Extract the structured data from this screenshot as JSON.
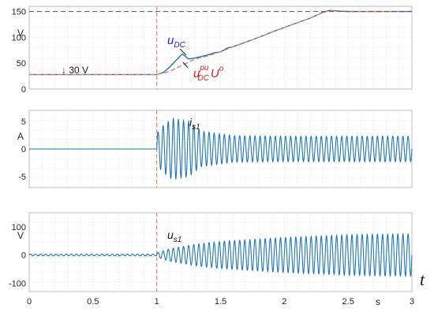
{
  "chart_data": [
    {
      "type": "line",
      "ylabel": "V",
      "ylim": [
        0,
        160
      ],
      "yticks": [
        "0",
        "50",
        "100",
        "150"
      ],
      "xlim": [
        0,
        3
      ],
      "xticks": [
        "0",
        "0.5",
        "1",
        "1.5",
        "2",
        "2.5",
        "3"
      ],
      "grid": true,
      "series": [
        {
          "name": "u_DC",
          "color": "#1f77b4",
          "x": [
            0,
            1.0,
            1.05,
            1.1,
            1.15,
            1.2,
            1.25,
            1.3,
            1.35,
            1.4,
            1.45,
            1.5,
            1.55,
            1.6,
            1.7,
            1.8,
            1.9,
            2.0,
            2.1,
            2.2,
            2.3,
            2.35,
            2.5,
            3.0
          ],
          "y": [
            28,
            28,
            32,
            42,
            55,
            68,
            58,
            60,
            63,
            66,
            70,
            72,
            79,
            82,
            91,
            100,
            110,
            119,
            128,
            137,
            148,
            152,
            150,
            150
          ]
        },
        {
          "name": "u_DC^pu U°",
          "color": "#e8806a",
          "dashed": true,
          "x": [
            0,
            1.0,
            1.1,
            1.2,
            1.3,
            1.4,
            1.5,
            1.6,
            1.7,
            1.8,
            1.9,
            2.0,
            2.1,
            2.2,
            2.3,
            2.35,
            2.5,
            3.0
          ],
          "y": [
            28,
            28,
            34,
            46,
            58,
            64,
            72,
            82,
            91,
            100,
            110,
            119,
            128,
            137,
            148,
            151,
            150,
            150
          ]
        },
        {
          "name": "reference",
          "color": "#555555",
          "dashed": true,
          "x": [
            0,
            3
          ],
          "y": [
            150,
            150
          ]
        }
      ],
      "annotations": {
        "udc_main": "u",
        "udc_sub": "DC",
        "updc_main": "u",
        "updc_sub": "DC",
        "updc_sup": "pu",
        "updc_tail": "U",
        "updc_tail_sup": "o",
        "step": "↓ 30 V"
      }
    },
    {
      "type": "line",
      "ylabel": "A",
      "ylim": [
        -7,
        7
      ],
      "yticks": [
        "-5",
        "0",
        "5"
      ],
      "xlim": [
        0,
        3
      ],
      "grid": true,
      "series": [
        {
          "name": "i_s1",
          "color": "#1f77b4",
          "x_start": 0,
          "x_end": 3,
          "value_before": 0,
          "oscillation_start": 1.0,
          "frequency": 25,
          "amplitude_profile": {
            "t": [
              1.0,
              1.04,
              1.12,
              1.25,
              1.35,
              1.6,
              2.0,
              3.0
            ],
            "a": [
              2.8,
              4.0,
              5.5,
              5.0,
              3.2,
              2.4,
              2.3,
              2.3
            ]
          }
        }
      ],
      "annotations": {
        "main": "i",
        "sub": "s1"
      }
    },
    {
      "type": "line",
      "ylabel": "V",
      "ylim": [
        -130,
        150
      ],
      "yticks": [
        "-100",
        "0",
        "100"
      ],
      "xlim": [
        0,
        3
      ],
      "xticks": [
        "0",
        "0.5",
        "1",
        "1.5",
        "2",
        "2.5",
        "3"
      ],
      "xlabel_s": "s",
      "xlabel_t": "t",
      "grid": true,
      "series": [
        {
          "name": "u_s1",
          "color": "#1f77b4",
          "x_start": 0,
          "x_end": 3,
          "pre_amplitude": 3,
          "oscillation_start": 1.0,
          "frequency": 25,
          "amplitude_profile": {
            "t": [
              1.0,
              1.1,
              1.3,
              1.5,
              2.0,
              2.5,
              3.0
            ],
            "a": [
              8,
              22,
              38,
              48,
              62,
              72,
              75
            ]
          }
        }
      ],
      "annotations": {
        "main": "u",
        "sub": "s1"
      }
    }
  ],
  "marker": {
    "x": 1.0,
    "color": "#e8806a"
  }
}
